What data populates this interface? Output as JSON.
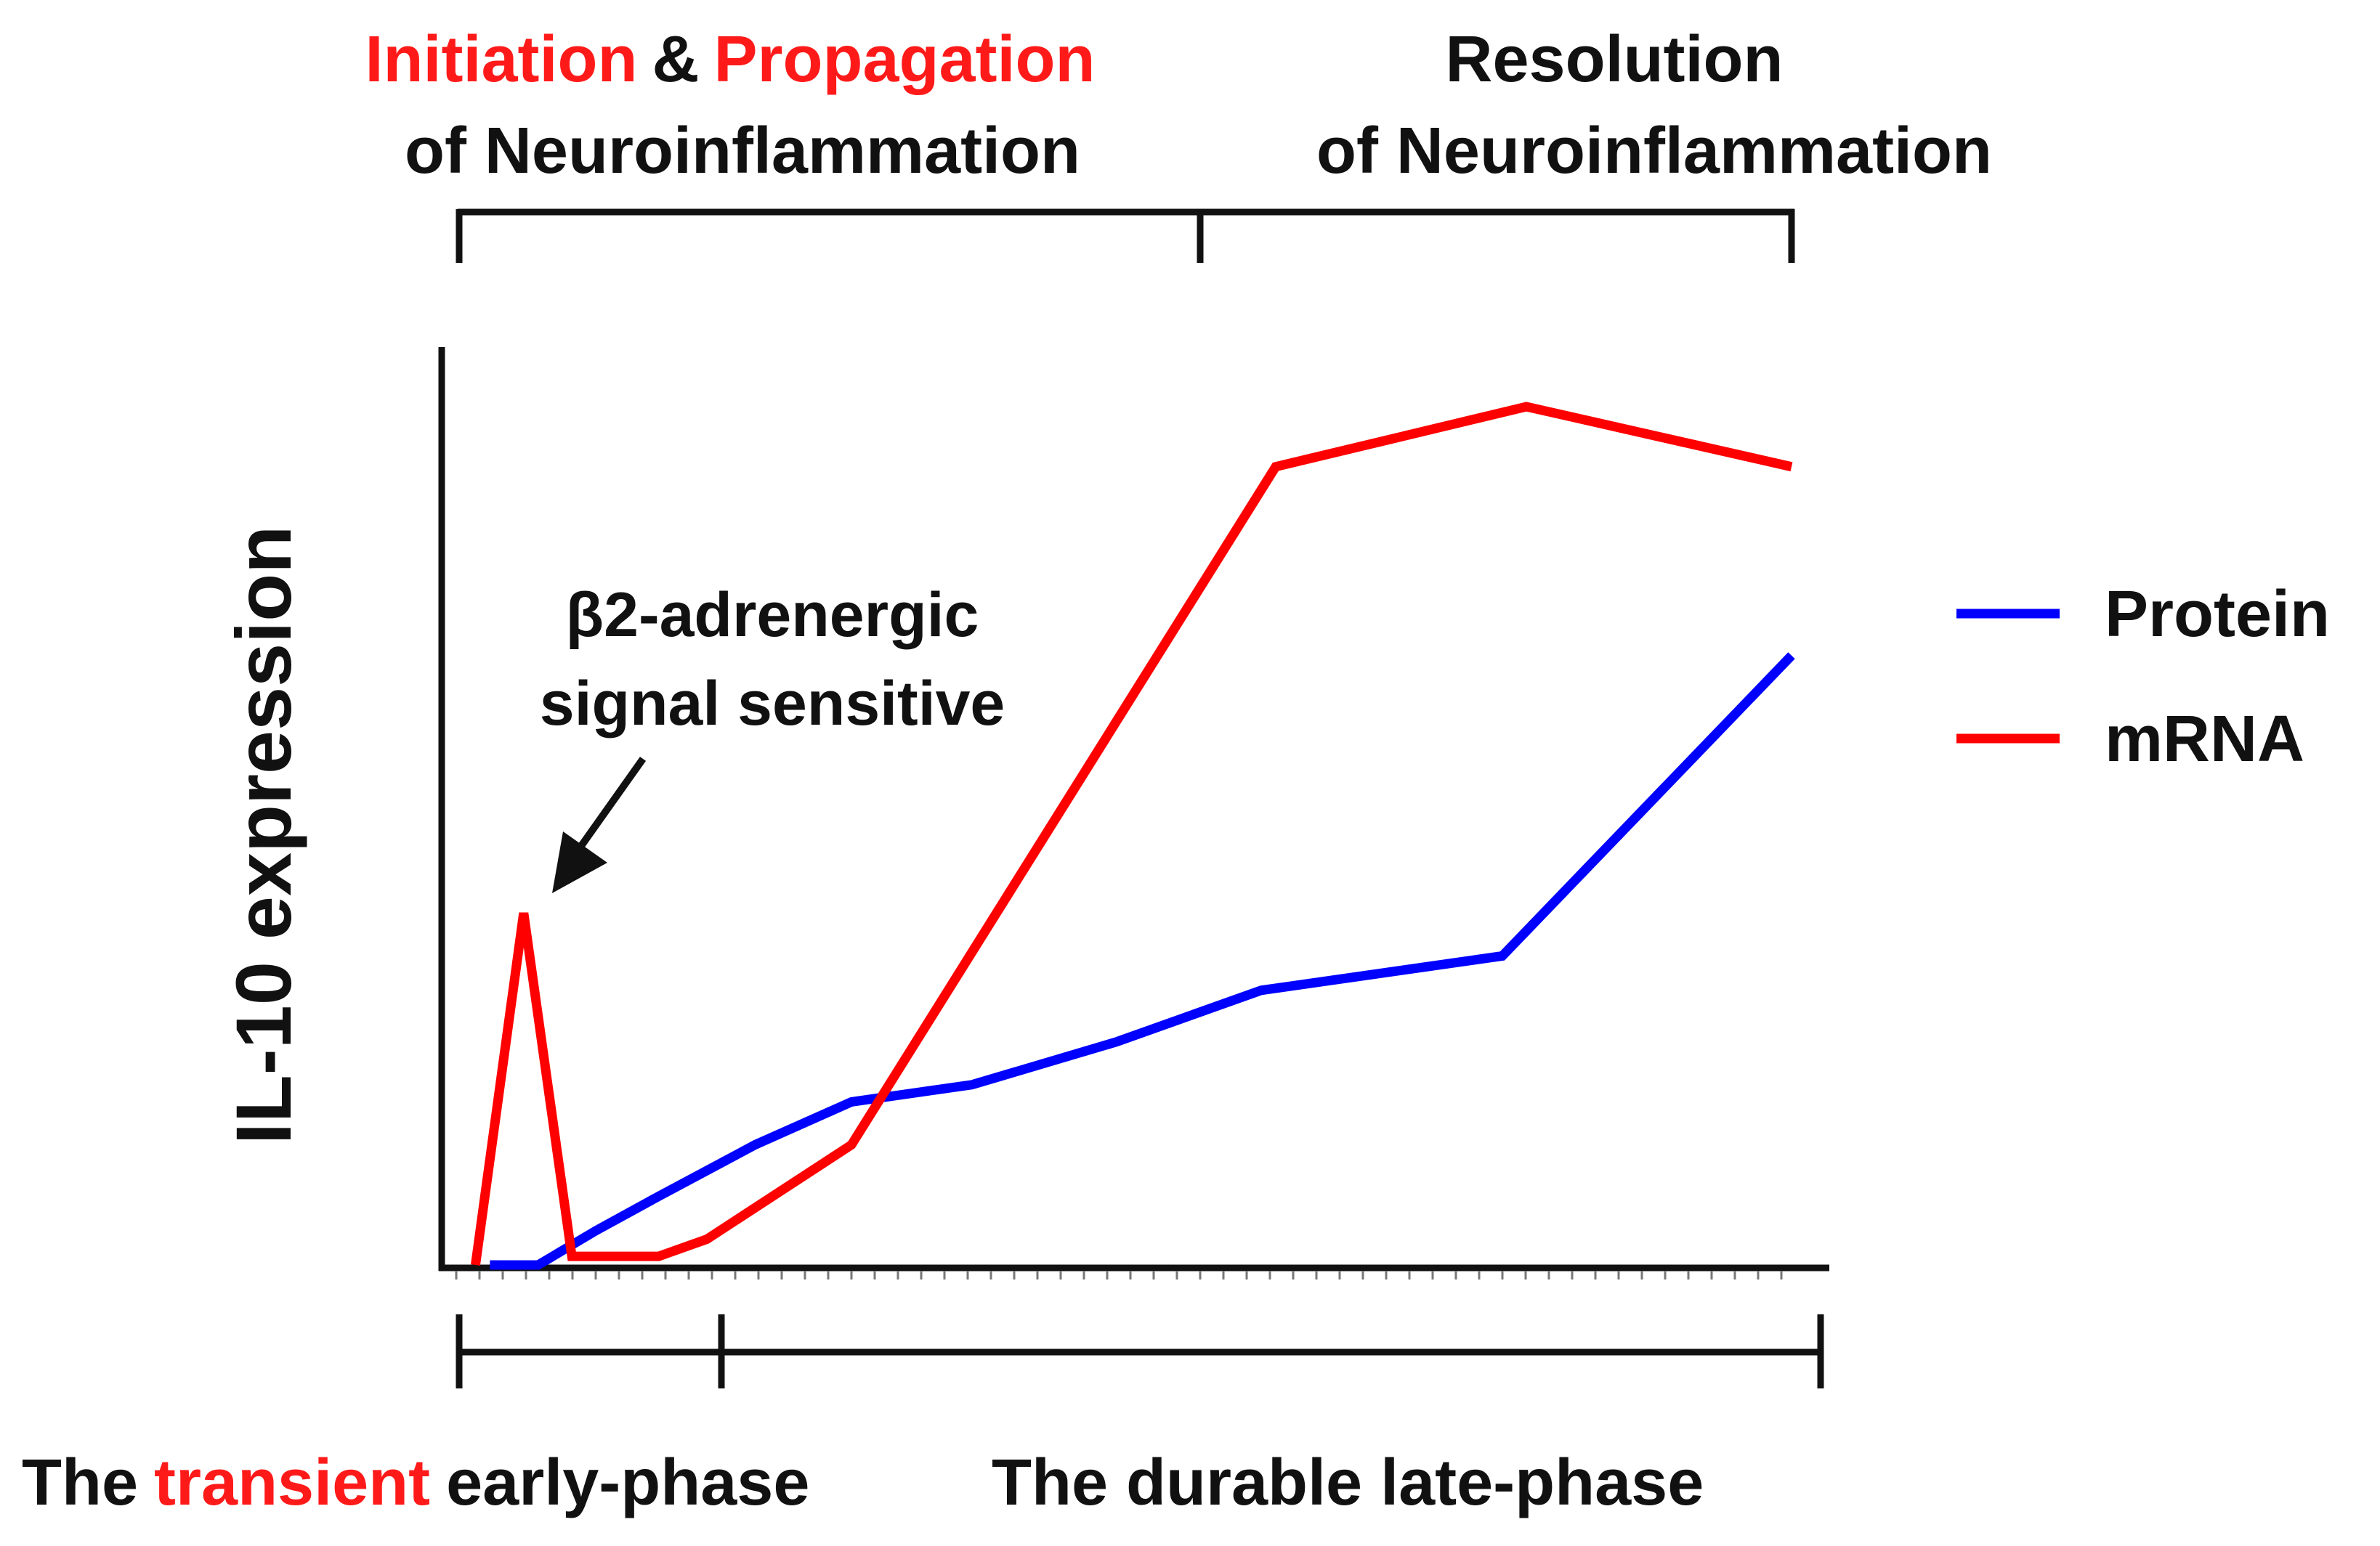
{
  "chart_data": {
    "type": "line",
    "title": "",
    "ylabel": "IL-10 expression",
    "xlabel": "",
    "ylim": [
      0,
      100
    ],
    "xlim": [
      0,
      28
    ],
    "grid": false,
    "legend_position": "right",
    "series": [
      {
        "name": "Protein",
        "color": "#0000ff",
        "x": [
          1,
          2,
          3.2,
          4.5,
          6.5,
          8.5,
          11,
          14,
          17,
          22,
          28
        ],
        "y": [
          0,
          0,
          4,
          8,
          14,
          19,
          21,
          26,
          32,
          36,
          71
        ]
      },
      {
        "name": "mRNA",
        "color": "#ff0000",
        "x": [
          0.7,
          1.7,
          2.7,
          4.5,
          5.5,
          8.5,
          17.3,
          22.5,
          28
        ],
        "y": [
          0,
          41,
          1,
          1,
          3,
          14,
          93,
          100,
          93
        ]
      }
    ],
    "annotations": {
      "arrow_label_line1": "β2-adrenergic",
      "arrow_label_line2": "signal sensitive",
      "arrow_target": {
        "x": 1.7,
        "y": 41
      }
    },
    "top_brackets": {
      "initiation": "Initiation",
      "ampersand": "&",
      "propagation": "Propagation",
      "of_neuro_left": "of Neuroinflammation",
      "resolution": "Resolution",
      "of_neuro_right": "of Neuroinflammation",
      "highlight_color": "#ff1a1a"
    },
    "bottom_phases": {
      "early_the": "The",
      "early_transient": "transient",
      "early_rest": "early-phase",
      "late": "The durable late-phase"
    }
  }
}
